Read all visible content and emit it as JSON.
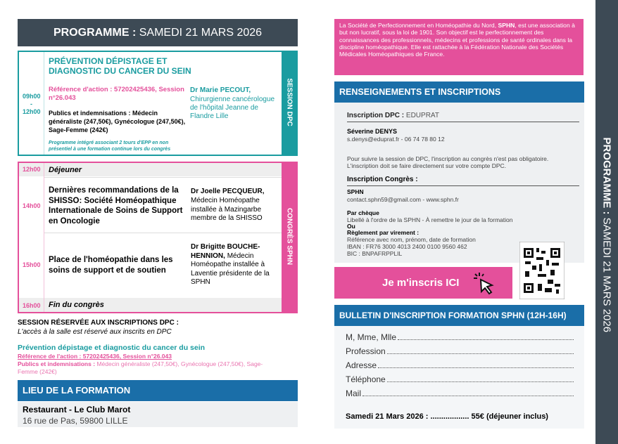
{
  "header": {
    "title_bold": "PROGRAMME :",
    "title_rest": "SAMEDI 21 MARS 2026"
  },
  "dpc_session": {
    "label": "SESSION DPC",
    "time_start": "09h00",
    "time_sep": "-",
    "time_end": "12h00",
    "title": "PRÉVENTION DÉPISTAGE ET DIAGNOSTIC DU CANCER DU SEIN",
    "reference": "Référence d'action : 57202425436, Session n°26.043",
    "public": "Publics et indemnisations : Médecin généraliste (247,50€), Gynécologue (247,50€), Sage-Femme (242€)",
    "note": "Programme intégré associant 2 tours d'EPP en non présentiel à une formation continue lors du congrès",
    "speaker_name": "Dr Marie PECOUT,",
    "speaker_desc": "Chirurgienne cancérologue de l'hôpital Jeanne de Flandre Lille"
  },
  "congress": {
    "label": "CONGRÈS SPHN",
    "rows": [
      {
        "time": "12h00",
        "title": "Déjeuner"
      },
      {
        "time": "14h00",
        "title": "Dernières recommandations de la SHISSO: Société Homéopathique Internationale de Soins de Support en Oncologie",
        "speaker_name": "Dr Joelle PECQUEUR,",
        "speaker_desc": "Médecin Homéopathe installée à Mazingarbe membre de la SHISSO"
      },
      {
        "time": "15h00",
        "title": "Place de l'homéopathie dans les soins de support et de soutien",
        "speaker_name": "Dr Brigitte BOUCHE-HENNION,",
        "speaker_desc": "Médecin Homéopathe installée à Laventie présidente de la SPHN"
      },
      {
        "time": "16h00",
        "title": "Fin du congrès"
      }
    ]
  },
  "dpc_reserved": {
    "title": "SESSION RÉSERVÉE AUX INSCRIPTIONS DPC :",
    "note": "L'accès à la salle est réservé aux inscrits en DPC",
    "program": "Prévention dépistage et diagnostic du cancer du sein",
    "reference": "Référence de l'action : 57202425436, Session n°26.043",
    "public_label": "Publics et indemnisations :",
    "public": "Médecin généraliste (247,50€), Gynécologue (247,50€), Sage-Femme (242€)"
  },
  "venue": {
    "title": "LIEU DE LA FORMATION",
    "name": "Restaurant - Le Club Marot",
    "address": "16 rue de Pas, 59800 LILLE"
  },
  "about": {
    "text_1": "La Société de Perfectionnement en Homéopathie du Nord, ",
    "text_bold": "SPHN",
    "text_2": ", est une association à but non lucratif, sous la loi de 1901. Son objectif est le perfectionnement des connaissances des professionnels, médecins et professions de santé ordinales dans la discipline homéopathique. Elle est rattachée à la Fédération Nationale des Sociétés Médicales Homéopathiques de France."
  },
  "info": {
    "title": "RENSEIGNEMENTS ET INSCRIPTIONS",
    "dpc_label": "Inscription DPC :",
    "dpc_org": "EDUPRAT",
    "contact_name": "Séverine DENYS",
    "contact_details": "s.denys@eduprat.fr - 06 74 78 80 12",
    "dpc_note": "Pour suivre la session de DPC, l'inscription au congrès n'est pas obligatoire. L'inscription doit se faire directement sur votre compte DPC.",
    "congress_label": "Inscription Congrès :",
    "sphn": "SPHN",
    "sphn_contact": "contact.sphn59@gmail.com - www.sphn.fr",
    "cheque_label": "Par chèque",
    "cheque_text": "Libellé à l'ordre de la SPHN - À remettre le jour de la formation",
    "or": "Ou",
    "transfer_label": "Règlement par virement :",
    "transfer_ref": "Référence avec nom, prénom, date de formation",
    "iban": "IBAN : FR76 3000 4013 2400 0100 9560 462",
    "bic": "BIC : BNPAFRPPLIL"
  },
  "register_button": "Je m'inscris ICI",
  "form": {
    "title": "BULLETIN D'INSCRIPTION FORMATION SPHN (12H-16H)",
    "fields": [
      "M, Mme, Mlle",
      "Profession",
      "Adresse",
      "Téléphone",
      "Mail"
    ],
    "price_date": "Samedi 21 Mars 2026 :",
    "price_dots": "..................",
    "price": "55€ (déjeuner inclus)"
  },
  "side_banner": {
    "bold": "PROGRAMME :",
    "rest": "SAMEDI 21 MARS 2026"
  }
}
